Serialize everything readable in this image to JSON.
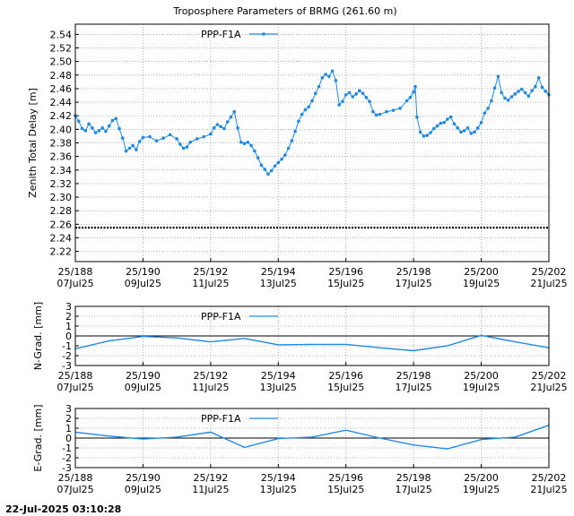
{
  "chart_data": [
    {
      "type": "scatter",
      "title": "Troposphere Parameters of BRMG (261.60 m)",
      "ylabel": "Zenith Total Delay [m]",
      "xlim": [
        188,
        202
      ],
      "ylim": [
        2.205,
        2.555
      ],
      "yticks": [
        "2.22",
        "2.24",
        "2.26",
        "2.28",
        "2.30",
        "2.32",
        "2.34",
        "2.36",
        "2.38",
        "2.40",
        "2.42",
        "2.44",
        "2.46",
        "2.48",
        "2.50",
        "2.52",
        "2.54"
      ],
      "xticks": [
        {
          "doy": "25/188",
          "date": "07Jul25"
        },
        {
          "doy": "25/190",
          "date": "09Jul25"
        },
        {
          "doy": "25/192",
          "date": "11Jul25"
        },
        {
          "doy": "25/194",
          "date": "13Jul25"
        },
        {
          "doy": "25/196",
          "date": "15Jul25"
        },
        {
          "doy": "25/198",
          "date": "17Jul25"
        },
        {
          "doy": "25/200",
          "date": "19Jul25"
        },
        {
          "doy": "25/202",
          "date": "21Jul25"
        }
      ],
      "grid": true,
      "legend": "top-left",
      "reference_line": {
        "value": 2.255,
        "color": "#000000"
      },
      "series": [
        {
          "name": "PPP-F1A",
          "color": "#1e88e5",
          "points": [
            [
              188.0,
              2.42
            ],
            [
              188.1,
              2.412
            ],
            [
              188.2,
              2.401
            ],
            [
              188.3,
              2.398
            ],
            [
              188.4,
              2.408
            ],
            [
              188.5,
              2.402
            ],
            [
              188.6,
              2.395
            ],
            [
              188.7,
              2.398
            ],
            [
              188.8,
              2.402
            ],
            [
              188.9,
              2.397
            ],
            [
              189.0,
              2.405
            ],
            [
              189.1,
              2.413
            ],
            [
              189.2,
              2.416
            ],
            [
              189.3,
              2.401
            ],
            [
              189.4,
              2.387
            ],
            [
              189.5,
              2.368
            ],
            [
              189.6,
              2.372
            ],
            [
              189.7,
              2.376
            ],
            [
              189.8,
              2.37
            ],
            [
              189.9,
              2.382
            ],
            [
              190.0,
              2.388
            ],
            [
              190.2,
              2.389
            ],
            [
              190.4,
              2.383
            ],
            [
              190.6,
              2.387
            ],
            [
              190.8,
              2.392
            ],
            [
              191.0,
              2.386
            ],
            [
              191.1,
              2.378
            ],
            [
              191.2,
              2.372
            ],
            [
              191.3,
              2.374
            ],
            [
              191.4,
              2.381
            ],
            [
              191.6,
              2.386
            ],
            [
              191.8,
              2.389
            ],
            [
              192.0,
              2.393
            ],
            [
              192.1,
              2.402
            ],
            [
              192.2,
              2.407
            ],
            [
              192.3,
              2.404
            ],
            [
              192.4,
              2.401
            ],
            [
              192.5,
              2.411
            ],
            [
              192.6,
              2.418
            ],
            [
              192.7,
              2.426
            ],
            [
              192.8,
              2.402
            ],
            [
              192.9,
              2.381
            ],
            [
              193.0,
              2.379
            ],
            [
              193.1,
              2.381
            ],
            [
              193.2,
              2.376
            ],
            [
              193.3,
              2.368
            ],
            [
              193.4,
              2.358
            ],
            [
              193.5,
              2.347
            ],
            [
              193.6,
              2.341
            ],
            [
              193.7,
              2.334
            ],
            [
              193.8,
              2.339
            ],
            [
              193.9,
              2.346
            ],
            [
              194.0,
              2.351
            ],
            [
              194.1,
              2.356
            ],
            [
              194.2,
              2.362
            ],
            [
              194.3,
              2.372
            ],
            [
              194.4,
              2.383
            ],
            [
              194.5,
              2.397
            ],
            [
              194.6,
              2.412
            ],
            [
              194.7,
              2.422
            ],
            [
              194.8,
              2.429
            ],
            [
              194.9,
              2.433
            ],
            [
              195.0,
              2.442
            ],
            [
              195.1,
              2.453
            ],
            [
              195.2,
              2.463
            ],
            [
              195.3,
              2.476
            ],
            [
              195.4,
              2.481
            ],
            [
              195.5,
              2.478
            ],
            [
              195.6,
              2.486
            ],
            [
              195.7,
              2.472
            ],
            [
              195.8,
              2.436
            ],
            [
              195.9,
              2.441
            ],
            [
              196.0,
              2.451
            ],
            [
              196.1,
              2.454
            ],
            [
              196.2,
              2.448
            ],
            [
              196.3,
              2.452
            ],
            [
              196.4,
              2.457
            ],
            [
              196.5,
              2.453
            ],
            [
              196.6,
              2.447
            ],
            [
              196.7,
              2.441
            ],
            [
              196.8,
              2.426
            ],
            [
              196.9,
              2.421
            ],
            [
              197.0,
              2.422
            ],
            [
              197.2,
              2.426
            ],
            [
              197.4,
              2.428
            ],
            [
              197.6,
              2.431
            ],
            [
              197.8,
              2.442
            ],
            [
              197.9,
              2.447
            ],
            [
              198.0,
              2.455
            ],
            [
              198.05,
              2.463
            ],
            [
              198.1,
              2.418
            ],
            [
              198.2,
              2.396
            ],
            [
              198.3,
              2.39
            ],
            [
              198.4,
              2.391
            ],
            [
              198.5,
              2.395
            ],
            [
              198.6,
              2.401
            ],
            [
              198.7,
              2.405
            ],
            [
              198.8,
              2.409
            ],
            [
              198.9,
              2.41
            ],
            [
              199.0,
              2.415
            ],
            [
              199.1,
              2.418
            ],
            [
              199.2,
              2.408
            ],
            [
              199.3,
              2.402
            ],
            [
              199.4,
              2.396
            ],
            [
              199.5,
              2.398
            ],
            [
              199.6,
              2.402
            ],
            [
              199.7,
              2.394
            ],
            [
              199.8,
              2.396
            ],
            [
              199.9,
              2.402
            ],
            [
              200.0,
              2.41
            ],
            [
              200.1,
              2.424
            ],
            [
              200.2,
              2.431
            ],
            [
              200.3,
              2.442
            ],
            [
              200.4,
              2.461
            ],
            [
              200.5,
              2.478
            ],
            [
              200.6,
              2.454
            ],
            [
              200.7,
              2.446
            ],
            [
              200.8,
              2.443
            ],
            [
              200.9,
              2.448
            ],
            [
              201.0,
              2.452
            ],
            [
              201.1,
              2.456
            ],
            [
              201.2,
              2.459
            ],
            [
              201.3,
              2.454
            ],
            [
              201.4,
              2.449
            ],
            [
              201.5,
              2.457
            ],
            [
              201.6,
              2.463
            ],
            [
              201.7,
              2.476
            ],
            [
              201.8,
              2.462
            ],
            [
              201.9,
              2.456
            ],
            [
              202.0,
              2.451
            ]
          ]
        }
      ]
    },
    {
      "type": "line",
      "ylabel": "N-Grad. [mm]",
      "xlim": [
        188,
        202
      ],
      "ylim": [
        -3,
        3
      ],
      "yticks": [
        "-3",
        "-2",
        "-1",
        "0",
        "1",
        "2",
        "3"
      ],
      "xticks": [
        {
          "doy": "25/188",
          "date": "07Jul25"
        },
        {
          "doy": "25/190",
          "date": "09Jul25"
        },
        {
          "doy": "25/192",
          "date": "11Jul25"
        },
        {
          "doy": "25/194",
          "date": "13Jul25"
        },
        {
          "doy": "25/196",
          "date": "15Jul25"
        },
        {
          "doy": "25/198",
          "date": "17Jul25"
        },
        {
          "doy": "25/200",
          "date": "19Jul25"
        },
        {
          "doy": "25/202",
          "date": "21Jul25"
        }
      ],
      "grid": true,
      "legend": "top-left",
      "series": [
        {
          "name": "PPP-F1A",
          "color": "#1e88e5",
          "points": [
            [
              188,
              -1.3
            ],
            [
              189,
              -0.5
            ],
            [
              190,
              -0.05
            ],
            [
              191,
              -0.2
            ],
            [
              192,
              -0.6
            ],
            [
              193,
              -0.25
            ],
            [
              194,
              -0.9
            ],
            [
              195,
              -0.85
            ],
            [
              196,
              -0.85
            ],
            [
              197,
              -1.2
            ],
            [
              198,
              -1.5
            ],
            [
              199,
              -1.0
            ],
            [
              200,
              0.05
            ],
            [
              201,
              -0.6
            ],
            [
              202,
              -1.2
            ]
          ]
        }
      ]
    },
    {
      "type": "line",
      "ylabel": "E-Grad. [mm]",
      "xlim": [
        188,
        202
      ],
      "ylim": [
        -3,
        3
      ],
      "yticks": [
        "-3",
        "-2",
        "-1",
        "0",
        "1",
        "2",
        "3"
      ],
      "xticks": [
        {
          "doy": "25/188",
          "date": "07Jul25"
        },
        {
          "doy": "25/190",
          "date": "09Jul25"
        },
        {
          "doy": "25/192",
          "date": "11Jul25"
        },
        {
          "doy": "25/194",
          "date": "13Jul25"
        },
        {
          "doy": "25/196",
          "date": "15Jul25"
        },
        {
          "doy": "25/198",
          "date": "17Jul25"
        },
        {
          "doy": "25/200",
          "date": "19Jul25"
        },
        {
          "doy": "25/202",
          "date": "21Jul25"
        }
      ],
      "grid": true,
      "legend": "top-left",
      "series": [
        {
          "name": "PPP-F1A",
          "color": "#1e88e5",
          "points": [
            [
              188,
              0.6
            ],
            [
              189,
              0.2
            ],
            [
              190,
              -0.1
            ],
            [
              191,
              0.1
            ],
            [
              192,
              0.6
            ],
            [
              193,
              -0.95
            ],
            [
              194,
              -0.05
            ],
            [
              195,
              0.1
            ],
            [
              196,
              0.8
            ],
            [
              197,
              0.0
            ],
            [
              198,
              -0.7
            ],
            [
              199,
              -1.1
            ],
            [
              200,
              -0.15
            ],
            [
              201,
              0.1
            ],
            [
              202,
              1.3
            ]
          ]
        }
      ]
    }
  ],
  "timestamp": "22-Jul-2025 03:10:28"
}
